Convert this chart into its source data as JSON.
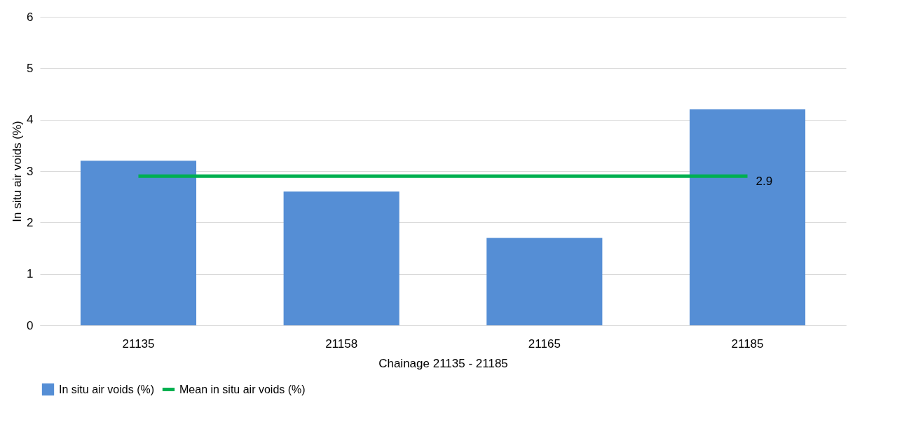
{
  "chart_data": {
    "type": "bar",
    "xlabel": "Chainage 21135 - 21185",
    "ylabel": "In situ air voids (%)",
    "categories": [
      "21135",
      "21158",
      "21165",
      "21185"
    ],
    "series": [
      {
        "name": "In situ air voids (%)",
        "color": "#558ed5",
        "values": [
          3.2,
          2.6,
          1.7,
          4.2
        ]
      },
      {
        "name": "Mean in situ air voids (%)",
        "type": "line",
        "color": "#00b050",
        "values": [
          2.9,
          2.9,
          2.9,
          2.9
        ],
        "value_labels": [
          null,
          null,
          null,
          "2.9"
        ]
      }
    ],
    "ylim": [
      0,
      6
    ],
    "yticks": [
      0,
      1,
      2,
      3,
      4,
      5,
      6
    ],
    "grid": "y",
    "legend": "bottom",
    "marker": "none"
  }
}
